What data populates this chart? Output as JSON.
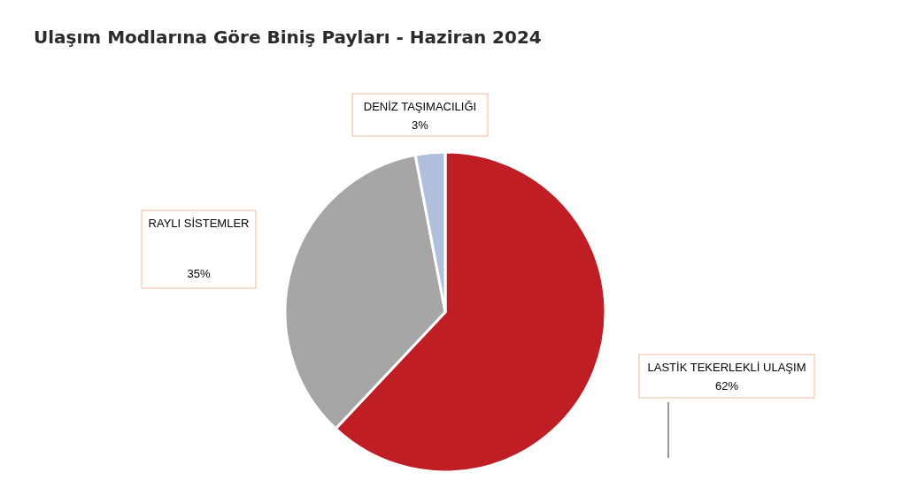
{
  "chart_data": {
    "type": "pie",
    "title": "Ulaşım Modlarına Göre Biniş Payları - Haziran 2024",
    "categories": [
      "LASTİK TEKERLEKLİ ULAŞIM",
      "RAYLI SİSTEMLER",
      "DENİZ TAŞIMACILIĞI"
    ],
    "values": [
      62,
      35,
      3
    ],
    "colors": [
      "#be1e24",
      "#a5a6a5",
      "#afbfdc"
    ],
    "value_labels": [
      "62%",
      "35%",
      "3%"
    ]
  }
}
